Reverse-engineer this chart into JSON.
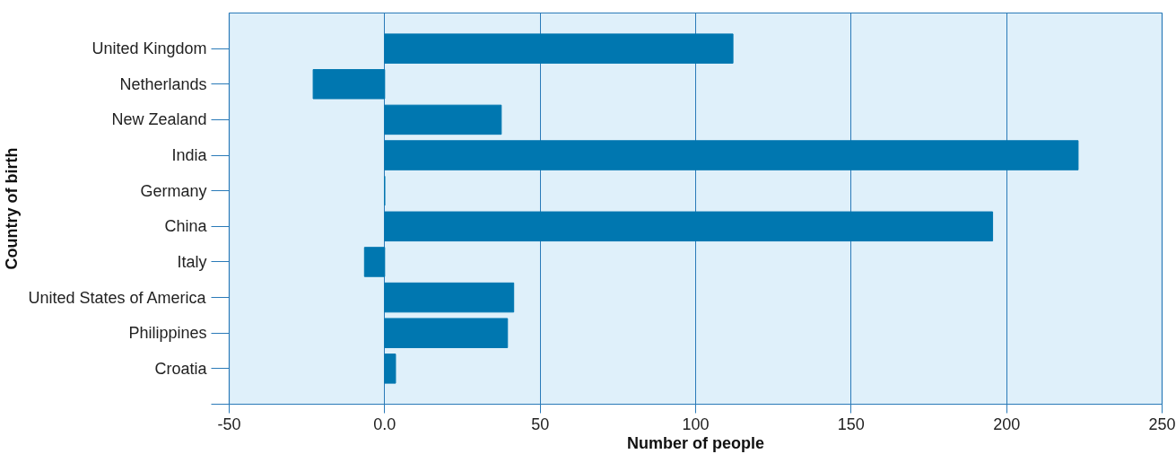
{
  "chart_data": {
    "type": "bar",
    "orientation": "horizontal",
    "xlabel": "Number of people",
    "ylabel": "Country of birth",
    "categories": [
      "United Kingdom",
      "Netherlands",
      "New Zealand",
      "India",
      "Germany",
      "China",
      "Italy",
      "United States of America",
      "Philippines",
      "Croatia"
    ],
    "values": [
      112,
      -23,
      37.5,
      223,
      0,
      195.5,
      -6.5,
      41.5,
      39.5,
      3.5
    ],
    "color": "#0077b0",
    "xlim": [
      -50,
      250
    ],
    "xticks": [
      -50,
      {
        "value": 0,
        "label": "0.0"
      },
      50,
      100,
      150,
      200,
      250
    ],
    "grid": "x"
  }
}
